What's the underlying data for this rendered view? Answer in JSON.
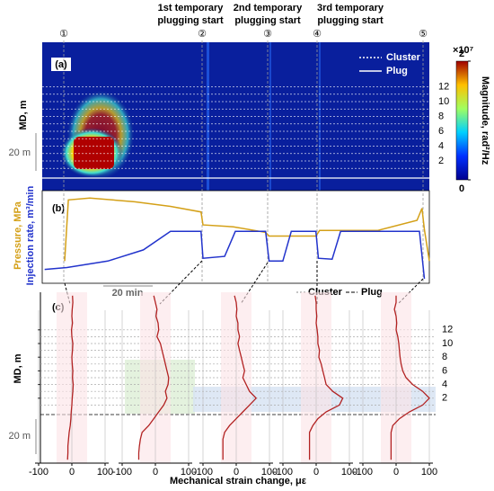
{
  "markers": [
    "①",
    "②",
    "③",
    "④",
    "⑤"
  ],
  "events": [
    {
      "line1": "1st temporary",
      "line2": "plugging start"
    },
    {
      "line1": "2nd temporary",
      "line2": "plugging start"
    },
    {
      "line1": "3rd temporary",
      "line2": "plugging start"
    }
  ],
  "panel_a": {
    "label": "(a)",
    "y_label": "MD, m",
    "ylim": [
      -2,
      18
    ],
    "yticks": [
      2,
      4,
      6,
      8,
      10,
      12
    ],
    "legend": {
      "cluster": "Cluster",
      "plug": "Plug"
    },
    "scale_label": "20 m",
    "colorbar": {
      "clim": [
        0,
        2
      ],
      "ticks": [
        0,
        2
      ],
      "multiplier": "×10⁷",
      "label": "Magnitude, rad²/Hz"
    }
  },
  "panel_b": {
    "label": "(b)",
    "y_label_rate": "Injection rate, m³/min",
    "y_label_pressure": "Pressure, MPa",
    "scale_label": "20 min",
    "xlim": [
      0,
      157
    ],
    "ylim": [
      0,
      100
    ],
    "pressure": {
      "color": "#d4a017",
      "x": [
        9.1,
        10.6,
        19.3,
        37.5,
        52,
        64.4,
        65.2,
        77.5,
        90.6,
        92,
        111,
        112.5,
        136,
        152,
        154,
        155,
        157
      ],
      "values": [
        24,
        90,
        92,
        88,
        83,
        77,
        63,
        61,
        55,
        51,
        51,
        57,
        57,
        68,
        81,
        58,
        24
      ]
    },
    "rate": {
      "color": "#2233cc",
      "x": [
        1,
        10,
        26.6,
        41,
        52,
        64.4,
        65.2,
        74,
        78.3,
        90.6,
        92,
        97.6,
        101,
        111,
        112,
        117.6,
        121,
        153,
        155
      ],
      "values": [
        15,
        17,
        24,
        36,
        56,
        56,
        27,
        29,
        56,
        56,
        24,
        24,
        56,
        56,
        27,
        26,
        56,
        56,
        5
      ]
    }
  },
  "panel_c": {
    "label": "(c)",
    "y_label": "MD, m",
    "x_label": "Mechanical strain change, με",
    "legend": {
      "cluster": "Cluster",
      "plug": "Plug"
    },
    "scale_label": "20 m",
    "ylim": [
      -7.5,
      17.5
    ],
    "yticks": [
      2,
      4,
      6,
      8,
      10,
      12
    ],
    "xlim": [
      -100,
      100
    ],
    "xticks": [
      -100,
      0,
      100
    ],
    "depth": [
      17,
      16,
      15,
      14,
      13,
      12,
      11,
      10,
      9,
      8,
      7,
      6,
      5,
      4,
      3,
      2,
      1,
      0,
      -1,
      -2,
      -3,
      -4,
      -5,
      -6,
      -7
    ],
    "color": "#b22222",
    "profiles": [
      [
        2,
        3,
        1,
        0,
        2,
        -1,
        0,
        3,
        2,
        0,
        1,
        3,
        2,
        4,
        3,
        1,
        0,
        -2,
        -3,
        -5,
        -8,
        -10,
        -12,
        -12,
        -13
      ],
      [
        -5,
        0,
        5,
        2,
        8,
        10,
        5,
        15,
        20,
        25,
        30,
        35,
        40,
        38,
        30,
        35,
        25,
        10,
        -5,
        -20,
        -40,
        -45,
        -48,
        -50,
        -50
      ],
      [
        -5,
        0,
        2,
        0,
        5,
        5,
        10,
        5,
        10,
        15,
        20,
        25,
        20,
        30,
        40,
        60,
        40,
        20,
        0,
        -20,
        -35,
        -40,
        -40,
        -40,
        -40
      ],
      [
        -3,
        0,
        0,
        2,
        0,
        3,
        5,
        5,
        10,
        8,
        15,
        20,
        25,
        30,
        50,
        80,
        70,
        30,
        5,
        -10,
        -20,
        -20,
        -20,
        -20,
        -20
      ],
      [
        0,
        0,
        -5,
        0,
        2,
        0,
        5,
        8,
        10,
        12,
        15,
        20,
        30,
        50,
        80,
        100,
        80,
        40,
        10,
        -10,
        -15,
        -15,
        -15,
        -15,
        -15
      ]
    ]
  }
}
